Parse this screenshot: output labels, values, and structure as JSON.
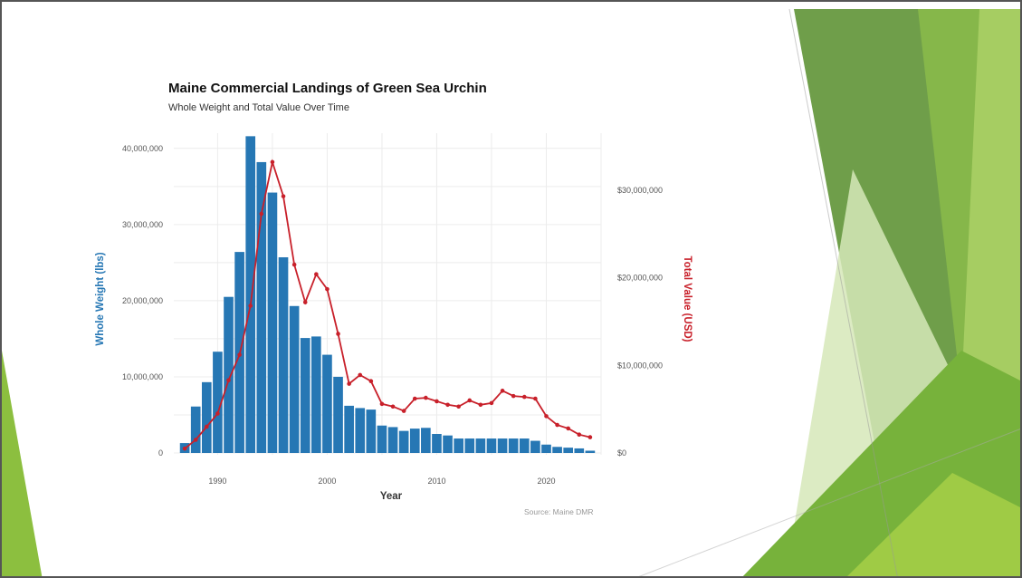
{
  "chart_data": {
    "type": "bar+line",
    "title": "Maine Commercial Landings of Green Sea Urchin",
    "subtitle": "Whole Weight and Total Value Over Time",
    "xlabel": "Year",
    "ylabel_left": "Whole Weight (lbs)",
    "ylabel_right": "Total Value (USD)",
    "source": "Source: Maine DMR",
    "x_ticks": [
      "1990",
      "2000",
      "2010",
      "2020"
    ],
    "y_left_ticks": [
      "0",
      "10,000,000",
      "20,000,000",
      "30,000,000",
      "40,000,000"
    ],
    "y_right_ticks": [
      "$0",
      "$10,000,000",
      "$20,000,000",
      "$30,000,000"
    ],
    "xlim": [
      1986,
      2025
    ],
    "ylim_left": [
      0,
      42000000
    ],
    "ylim_right": [
      0,
      36500000
    ],
    "grid": true,
    "years": [
      1987,
      1988,
      1989,
      1990,
      1991,
      1992,
      1993,
      1994,
      1995,
      1996,
      1997,
      1998,
      1999,
      2000,
      2001,
      2002,
      2003,
      2004,
      2005,
      2006,
      2007,
      2008,
      2009,
      2010,
      2011,
      2012,
      2013,
      2014,
      2015,
      2016,
      2017,
      2018,
      2019,
      2020,
      2021,
      2022,
      2023,
      2024
    ],
    "series": [
      {
        "name": "Whole Weight (lbs)",
        "kind": "bar",
        "color": "#2677b4",
        "values": [
          1300000,
          6100000,
          9300000,
          13300000,
          20500000,
          26400000,
          41600000,
          38200000,
          34200000,
          25700000,
          19300000,
          15100000,
          15300000,
          12900000,
          10000000,
          6200000,
          5900000,
          5700000,
          3600000,
          3400000,
          2900000,
          3200000,
          3300000,
          2500000,
          2300000,
          1900000,
          1900000,
          1900000,
          1900000,
          1900000,
          1900000,
          1900000,
          1600000,
          1100000,
          800000,
          700000,
          600000,
          300000
        ]
      },
      {
        "name": "Total Value (USD)",
        "kind": "line",
        "color": "#c8202a",
        "values": [
          500000,
          1500000,
          3000000,
          4500000,
          8300000,
          11200000,
          16800000,
          27300000,
          33200000,
          29300000,
          21500000,
          17200000,
          20400000,
          18700000,
          13600000,
          7900000,
          8900000,
          8200000,
          5600000,
          5300000,
          4800000,
          6200000,
          6300000,
          5900000,
          5500000,
          5300000,
          6000000,
          5500000,
          5700000,
          7100000,
          6500000,
          6400000,
          6200000,
          4200000,
          3200000,
          2800000,
          2100000,
          1800000
        ]
      }
    ]
  }
}
